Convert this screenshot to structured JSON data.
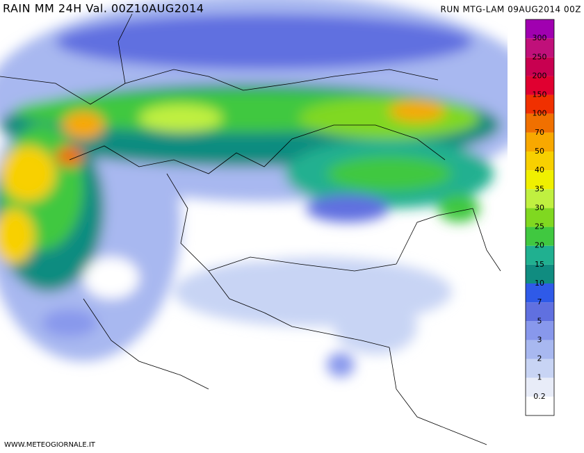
{
  "header": {
    "title": "RAIN  MM  24H  Val.  00Z10AUG2014",
    "run": "RUN  MTG-LAM  09AUG2014  00Z"
  },
  "legend": {
    "labels": [
      "0.2",
      "1",
      "2",
      "3",
      "5",
      "7",
      "10",
      "15",
      "20",
      "25",
      "30",
      "35",
      "40",
      "50",
      "70",
      "100",
      "150",
      "200",
      "250",
      "300"
    ],
    "colors": [
      "#ffffff",
      "#e8ecf8",
      "#c8d4f4",
      "#a8b8f0",
      "#8898ec",
      "#6070e0",
      "#2f5ae8",
      "#108c80",
      "#20b090",
      "#40c840",
      "#80d820",
      "#c0f040",
      "#f0f000",
      "#f8d000",
      "#f8a800",
      "#f07000",
      "#f03000",
      "#e00030",
      "#c80050",
      "#c0107a",
      "#a000b0"
    ]
  },
  "footer": {
    "credit": "WWW.METEOGIORNALE.IT"
  }
}
